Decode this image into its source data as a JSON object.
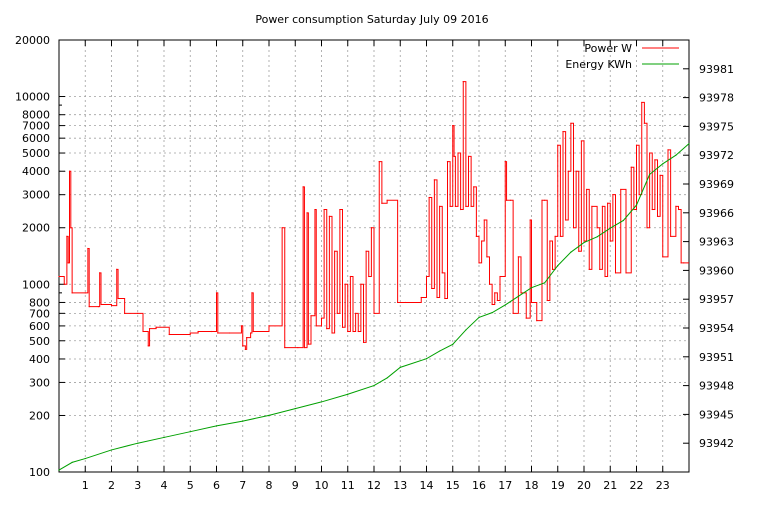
{
  "chart_data": {
    "type": "line",
    "title": "Power consumption Saturday July 09 2016",
    "xlabel": "",
    "ylabel": "",
    "x_range": [
      0,
      24
    ],
    "x_ticks": [
      1,
      2,
      3,
      4,
      5,
      6,
      7,
      8,
      9,
      10,
      11,
      12,
      13,
      14,
      15,
      16,
      17,
      18,
      19,
      20,
      21,
      22,
      23
    ],
    "y_scale": "log",
    "y_range": [
      100,
      20000
    ],
    "y_ticks": [
      100,
      200,
      300,
      400,
      500,
      600,
      700,
      800,
      1000,
      2000,
      3000,
      4000,
      5000,
      6000,
      7000,
      8000,
      10000,
      20000
    ],
    "y2_range": [
      93939,
      93984
    ],
    "y2_ticks": [
      93942,
      93945,
      93948,
      93951,
      93954,
      93957,
      93960,
      93963,
      93966,
      93969,
      93972,
      93975,
      93978,
      93981
    ],
    "grid": true,
    "legend_position": "top-right",
    "series": [
      {
        "name": "Power W",
        "axis": "left",
        "color": "#ff0000",
        "step": true,
        "points": [
          [
            0.0,
            1100
          ],
          [
            0.2,
            1000
          ],
          [
            0.3,
            1800
          ],
          [
            0.35,
            1300
          ],
          [
            0.4,
            4000
          ],
          [
            0.45,
            2000
          ],
          [
            0.5,
            900
          ],
          [
            1.0,
            900
          ],
          [
            1.1,
            1550
          ],
          [
            1.15,
            760
          ],
          [
            1.5,
            760
          ],
          [
            1.55,
            1150
          ],
          [
            1.6,
            780
          ],
          [
            2.0,
            770
          ],
          [
            2.2,
            1200
          ],
          [
            2.25,
            840
          ],
          [
            2.5,
            700
          ],
          [
            3.0,
            700
          ],
          [
            3.2,
            560
          ],
          [
            3.4,
            470
          ],
          [
            3.45,
            580
          ],
          [
            3.7,
            590
          ],
          [
            4.2,
            540
          ],
          [
            5.0,
            550
          ],
          [
            5.3,
            560
          ],
          [
            5.8,
            560
          ],
          [
            6.0,
            900
          ],
          [
            6.05,
            550
          ],
          [
            6.5,
            550
          ],
          [
            6.95,
            600
          ],
          [
            7.0,
            470
          ],
          [
            7.1,
            450
          ],
          [
            7.15,
            520
          ],
          [
            7.3,
            550
          ],
          [
            7.35,
            900
          ],
          [
            7.4,
            560
          ],
          [
            8.0,
            600
          ],
          [
            8.5,
            2000
          ],
          [
            8.6,
            460
          ],
          [
            9.1,
            460
          ],
          [
            9.3,
            3300
          ],
          [
            9.35,
            460
          ],
          [
            9.45,
            2400
          ],
          [
            9.5,
            480
          ],
          [
            9.6,
            680
          ],
          [
            9.75,
            2500
          ],
          [
            9.8,
            600
          ],
          [
            10.0,
            660
          ],
          [
            10.1,
            2500
          ],
          [
            10.2,
            580
          ],
          [
            10.3,
            2300
          ],
          [
            10.4,
            550
          ],
          [
            10.5,
            1500
          ],
          [
            10.6,
            700
          ],
          [
            10.7,
            2500
          ],
          [
            10.8,
            590
          ],
          [
            10.9,
            1000
          ],
          [
            11.0,
            560
          ],
          [
            11.1,
            1100
          ],
          [
            11.2,
            560
          ],
          [
            11.3,
            700
          ],
          [
            11.4,
            560
          ],
          [
            11.5,
            1000
          ],
          [
            11.6,
            490
          ],
          [
            11.7,
            1500
          ],
          [
            11.8,
            1100
          ],
          [
            11.9,
            2000
          ],
          [
            12.0,
            700
          ],
          [
            12.2,
            4500
          ],
          [
            12.3,
            2700
          ],
          [
            12.5,
            2800
          ],
          [
            12.9,
            800
          ],
          [
            13.2,
            800
          ],
          [
            13.8,
            850
          ],
          [
            14.0,
            1100
          ],
          [
            14.1,
            2900
          ],
          [
            14.2,
            950
          ],
          [
            14.3,
            3600
          ],
          [
            14.4,
            850
          ],
          [
            14.5,
            2600
          ],
          [
            14.6,
            1150
          ],
          [
            14.7,
            840
          ],
          [
            14.8,
            4500
          ],
          [
            14.9,
            2600
          ],
          [
            15.0,
            7000
          ],
          [
            15.05,
            4800
          ],
          [
            15.1,
            2600
          ],
          [
            15.2,
            5000
          ],
          [
            15.3,
            2500
          ],
          [
            15.4,
            12000
          ],
          [
            15.5,
            2600
          ],
          [
            15.6,
            4800
          ],
          [
            15.7,
            2600
          ],
          [
            15.8,
            3300
          ],
          [
            15.9,
            1800
          ],
          [
            16.0,
            1300
          ],
          [
            16.1,
            1700
          ],
          [
            16.2,
            2200
          ],
          [
            16.3,
            1400
          ],
          [
            16.4,
            1000
          ],
          [
            16.5,
            780
          ],
          [
            16.6,
            900
          ],
          [
            16.7,
            820
          ],
          [
            16.8,
            1100
          ],
          [
            17.0,
            4500
          ],
          [
            17.05,
            2800
          ],
          [
            17.2,
            2800
          ],
          [
            17.3,
            700
          ],
          [
            17.5,
            1400
          ],
          [
            17.6,
            900
          ],
          [
            17.8,
            660
          ],
          [
            17.95,
            2200
          ],
          [
            18.0,
            800
          ],
          [
            18.2,
            640
          ],
          [
            18.4,
            2800
          ],
          [
            18.5,
            2800
          ],
          [
            18.6,
            820
          ],
          [
            18.7,
            1700
          ],
          [
            18.8,
            1200
          ],
          [
            18.9,
            1800
          ],
          [
            19.0,
            5500
          ],
          [
            19.1,
            1800
          ],
          [
            19.2,
            6500
          ],
          [
            19.3,
            2200
          ],
          [
            19.4,
            4000
          ],
          [
            19.5,
            7200
          ],
          [
            19.6,
            2000
          ],
          [
            19.7,
            4000
          ],
          [
            19.8,
            1500
          ],
          [
            19.9,
            5800
          ],
          [
            20.0,
            1700
          ],
          [
            20.1,
            3200
          ],
          [
            20.2,
            1200
          ],
          [
            20.3,
            2600
          ],
          [
            20.5,
            2000
          ],
          [
            20.6,
            1200
          ],
          [
            20.7,
            2600
          ],
          [
            20.8,
            1100
          ],
          [
            20.9,
            2700
          ],
          [
            21.0,
            1700
          ],
          [
            21.1,
            3000
          ],
          [
            21.2,
            1150
          ],
          [
            21.4,
            3200
          ],
          [
            21.6,
            1150
          ],
          [
            21.8,
            4200
          ],
          [
            21.9,
            2500
          ],
          [
            22.0,
            5500
          ],
          [
            22.1,
            3000
          ],
          [
            22.2,
            9300
          ],
          [
            22.3,
            7200
          ],
          [
            22.4,
            2000
          ],
          [
            22.5,
            5000
          ],
          [
            22.6,
            2500
          ],
          [
            22.7,
            4600
          ],
          [
            22.8,
            2300
          ],
          [
            22.9,
            3800
          ],
          [
            23.0,
            1400
          ],
          [
            23.2,
            5200
          ],
          [
            23.3,
            1800
          ],
          [
            23.5,
            2600
          ],
          [
            23.6,
            2500
          ],
          [
            23.7,
            1300
          ],
          [
            23.8,
            1300
          ]
        ]
      },
      {
        "name": "Energy KWh",
        "axis": "right",
        "color": "#00a000",
        "step": false,
        "points": [
          [
            0.0,
            93939.2
          ],
          [
            0.5,
            93940.0
          ],
          [
            1.0,
            93940.4
          ],
          [
            2.0,
            93941.3
          ],
          [
            3.0,
            93942.0
          ],
          [
            4.0,
            93942.6
          ],
          [
            5.0,
            93943.2
          ],
          [
            6.0,
            93943.8
          ],
          [
            7.0,
            93944.3
          ],
          [
            8.0,
            93944.9
          ],
          [
            9.0,
            93945.6
          ],
          [
            10.0,
            93946.3
          ],
          [
            11.0,
            93947.1
          ],
          [
            12.0,
            93948.0
          ],
          [
            12.5,
            93948.8
          ],
          [
            13.0,
            93949.9
          ],
          [
            14.0,
            93950.8
          ],
          [
            14.5,
            93951.6
          ],
          [
            15.0,
            93952.3
          ],
          [
            15.5,
            93953.8
          ],
          [
            16.0,
            93955.1
          ],
          [
            16.5,
            93955.6
          ],
          [
            17.0,
            93956.4
          ],
          [
            17.5,
            93957.3
          ],
          [
            18.0,
            93958.2
          ],
          [
            18.5,
            93958.7
          ],
          [
            19.0,
            93960.5
          ],
          [
            19.5,
            93961.9
          ],
          [
            20.0,
            93962.9
          ],
          [
            20.5,
            93963.5
          ],
          [
            21.0,
            93964.4
          ],
          [
            21.5,
            93965.2
          ],
          [
            22.0,
            93966.8
          ],
          [
            22.5,
            93970.0
          ],
          [
            23.0,
            93971.1
          ],
          [
            23.5,
            93972.0
          ],
          [
            24.0,
            93973.2
          ]
        ]
      }
    ]
  }
}
